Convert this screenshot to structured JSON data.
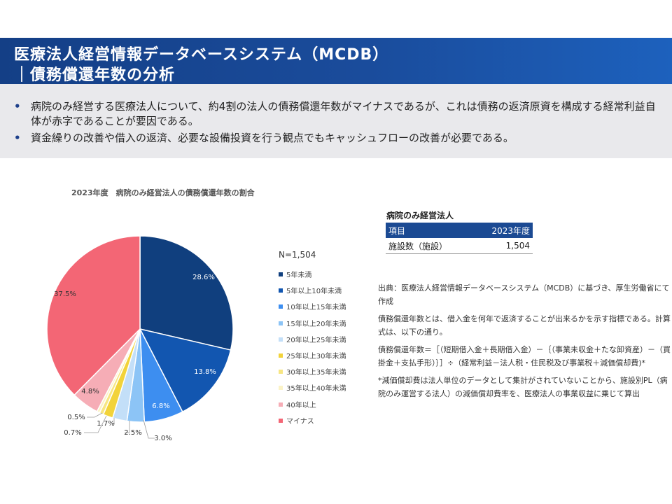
{
  "header": {
    "title_line1": "医療法人経営情報データベースシステム（MCDB）",
    "title_line2": "｜債務償還年数の分析"
  },
  "summary": {
    "bullet": "•",
    "items": [
      "病院のみ経営する医療法人について、約4割の法人の債務償還年数がマイナスであるが、これは債務の返済原資を構成する経常利益自体が赤字であることが要因である。",
      "資金繰りの改善や借入の返済、必要な設備投資を行う観点でもキャッシュフローの改善が必要である。"
    ]
  },
  "chart_data": {
    "type": "pie",
    "title": "2023年度　病院のみ経営法人の債務償還年数の割合",
    "n_label": "N=1,504",
    "slices": [
      {
        "label": "5年未満",
        "value": 28.6,
        "value_label": "28.6%",
        "color": "#103f7e"
      },
      {
        "label": "5年以上10年未満",
        "value": 13.8,
        "value_label": "13.8%",
        "color": "#1256b0"
      },
      {
        "label": "10年以上15年未満",
        "value": 6.8,
        "value_label": "6.8%",
        "color": "#3d8ef0"
      },
      {
        "label": "15年以上20年未満",
        "value": 3.0,
        "value_label": "3.0%",
        "color": "#8cc4f6"
      },
      {
        "label": "20年以上25年未満",
        "value": 2.5,
        "value_label": "2.5%",
        "color": "#c3dff8"
      },
      {
        "label": "25年以上30年未満",
        "value": 1.7,
        "value_label": "1.7%",
        "color": "#f2d33a"
      },
      {
        "label": "30年以上35年未満",
        "value": 0.7,
        "value_label": "0.7%",
        "color": "#f7e683"
      },
      {
        "label": "35年以上40年未満",
        "value": 0.5,
        "value_label": "0.5%",
        "color": "#fbf3c6"
      },
      {
        "label": "40年以上",
        "value": 4.8,
        "value_label": "4.8%",
        "color": "#f6adb6"
      },
      {
        "label": "マイナス",
        "value": 37.5,
        "value_label": "37.5%",
        "color": "#f36675"
      }
    ]
  },
  "table": {
    "title": "病院のみ経営法人",
    "headers": [
      "項目",
      "2023年度"
    ],
    "row": [
      "施設数（施設）",
      "1,504"
    ]
  },
  "notes": [
    "出典：医療法人経営情報データベースシステム（MCDB）に基づき、厚生労働省にて作成",
    "債務償還年数とは、借入金を何年で返済することが出来るかを示す指標である。計算式は、以下の通り。",
    "債務償還年数＝［（短期借入金＋長期借入金）－｛（事業未収金＋たな卸資産）－（買掛金＋支払手形）｝］÷（経常利益－法人税・住民税及び事業税＋減価償却費)*",
    "*減価償却費は法人単位のデータとして集計がされていないことから、施設別PL（病院のみ運営する法人）の減価償却費率を、医療法人の事業収益に乗じて算出"
  ]
}
